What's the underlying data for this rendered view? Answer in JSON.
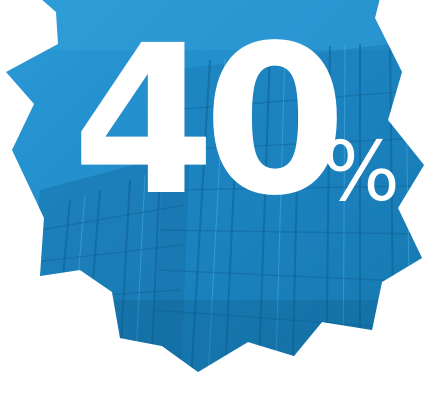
{
  "badge": {
    "value": "40",
    "unit": "%",
    "colors": {
      "fill": "#1e88c7",
      "fill_light": "#3aa6dc",
      "fill_dark": "#12679c",
      "text": "#ffffff"
    }
  }
}
